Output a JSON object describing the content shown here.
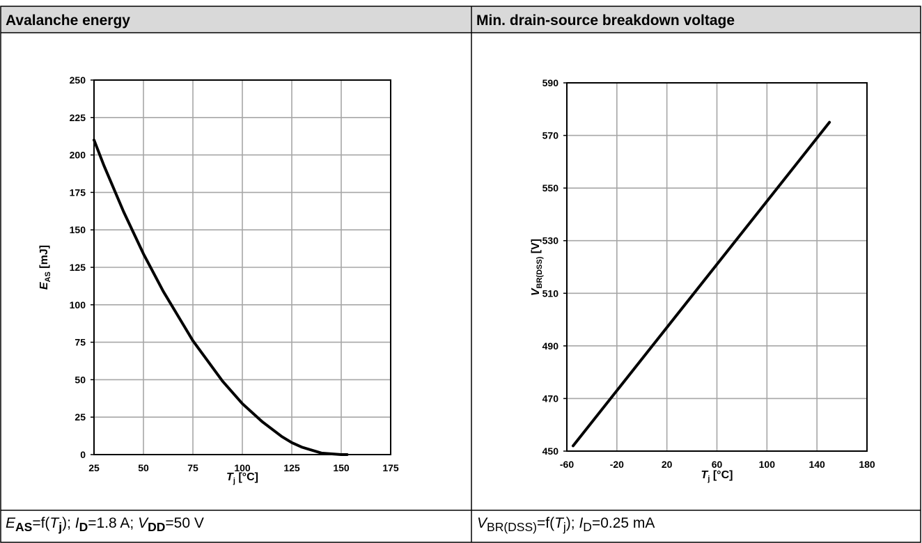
{
  "panels": {
    "left_title": "Avalanche energy",
    "right_title": "Min. drain-source breakdown voltage"
  },
  "captions": {
    "left": {
      "e": "E",
      "as": "AS",
      "f_open": "=f(",
      "t": "T",
      "j": "j",
      "close_sep": "); ",
      "i": "I",
      "d": "D",
      "id_val": "=1.8 A; ",
      "v": "V",
      "dd": "DD",
      "vdd_val": "=50 V"
    },
    "right": {
      "v": "V",
      "br": "BR(DSS)",
      "f_open": "=f(",
      "t": "T",
      "j": "j",
      "close_sep": "); ",
      "i": "I",
      "d": "D",
      "id_val": "=0.25 mA"
    }
  },
  "chart_data": [
    {
      "type": "line",
      "title": "Avalanche energy",
      "xlabel": "Tj [°C]",
      "ylabel": "EAS [mJ]",
      "xlim": [
        25,
        175
      ],
      "ylim": [
        0,
        250
      ],
      "x_ticks": [
        25,
        50,
        75,
        100,
        125,
        150,
        175
      ],
      "y_ticks": [
        0,
        25,
        50,
        75,
        100,
        125,
        150,
        175,
        200,
        225,
        250
      ],
      "grid": true,
      "series": [
        {
          "x": [
            25,
            30,
            40,
            50,
            60,
            70,
            75,
            80,
            90,
            100,
            110,
            120,
            125,
            130,
            140,
            150,
            153
          ],
          "y": [
            210,
            193,
            162,
            134,
            109,
            87,
            76,
            67,
            49,
            34,
            22,
            12,
            8,
            5,
            1,
            0,
            0
          ]
        }
      ],
      "line_color": "#000000"
    },
    {
      "type": "line",
      "title": "Min. drain-source breakdown voltage",
      "xlabel": "Tj [°C]",
      "ylabel": "VBR(DSS) [V]",
      "xlim": [
        -60,
        180
      ],
      "ylim": [
        450,
        590
      ],
      "x_ticks": [
        -60,
        -20,
        20,
        60,
        100,
        140,
        180
      ],
      "y_ticks": [
        450,
        470,
        490,
        510,
        530,
        550,
        570,
        590
      ],
      "grid": true,
      "series": [
        {
          "x": [
            -55,
            150
          ],
          "y": [
            452,
            575
          ]
        }
      ],
      "line_color": "#000000"
    }
  ]
}
